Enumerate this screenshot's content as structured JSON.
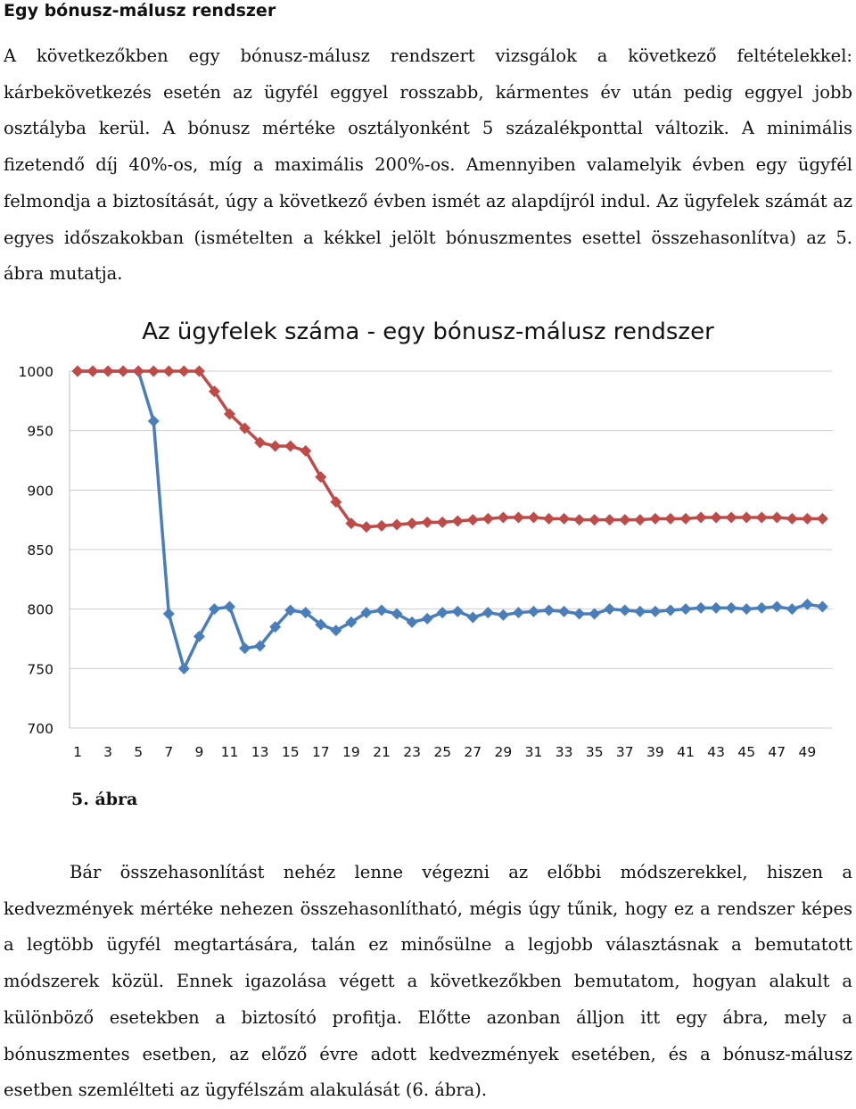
{
  "heading": "Egy bónusz-málusz rendszer",
  "paragraph_1": "A következőkben egy bónusz-málusz rendszert vizsgálok a következő feltételekkel: kárbekövetkezés esetén az ügyfél eggyel rosszabb, kármentes év után pedig eggyel jobb osztályba kerül. A bónusz mértéke osztályonként 5 százalékponttal változik. A minimális fizetendő díj 40%-os, míg a maximális 200%-os. Amennyiben valamelyik évben egy ügyfél felmondja a biztosítását, úgy a következő évben ismét az alapdíjról indul. Az ügyfelek számát az egyes időszakokban (ismételten a kékkel jelölt bónuszmentes esettel összehasonlítva) az 5. ábra mutatja.",
  "caption": "5. ábra",
  "paragraph_2": "Bár összehasonlítást nehéz lenne végezni az előbbi módszerekkel, hiszen a kedvezmények mértéke nehezen összehasonlítható, mégis úgy tűnik, hogy ez a rendszer képes a legtöbb ügyfél megtartására, talán ez minősülne a legjobb választásnak a bemutatott módszerek közül. Ennek igazolása végett a következőkben bemutatom, hogyan alakult a különböző esetekben a biztosító profitja. Előtte azonban álljon itt egy ábra, mely a bónuszmentes esetben, az előző évre adott kedvezmények esetében, és a bónusz-málusz esetben szemlélteti az ügyfélszám alakulását (6. ábra).",
  "chart_data": {
    "type": "line",
    "title": "Az ügyfelek száma - egy bónusz-málusz rendszer",
    "xlabel": "",
    "ylabel": "",
    "ylim": [
      700,
      1000
    ],
    "yticks": [
      1000,
      950,
      900,
      850,
      800,
      750,
      700
    ],
    "x": [
      1,
      2,
      3,
      4,
      5,
      6,
      7,
      8,
      9,
      10,
      11,
      12,
      13,
      14,
      15,
      16,
      17,
      18,
      19,
      20,
      21,
      22,
      23,
      24,
      25,
      26,
      27,
      28,
      29,
      30,
      31,
      32,
      33,
      34,
      35,
      36,
      37,
      38,
      39,
      40,
      41,
      42,
      43,
      44,
      45,
      46,
      47,
      48,
      49,
      50
    ],
    "xtick_labels": [
      "1",
      "3",
      "5",
      "7",
      "9",
      "11",
      "13",
      "15",
      "17",
      "19",
      "21",
      "23",
      "25",
      "27",
      "29",
      "31",
      "33",
      "35",
      "37",
      "39",
      "41",
      "43",
      "45",
      "47",
      "49"
    ],
    "grid": "horizontal",
    "legend": "none",
    "series": [
      {
        "color": "#4a7ebb",
        "marker": "diamond",
        "values": [
          1000,
          1000,
          1000,
          1000,
          1000,
          958,
          796,
          750,
          777,
          800,
          802,
          767,
          769,
          785,
          799,
          797,
          787,
          782,
          789,
          797,
          799,
          796,
          789,
          792,
          797,
          798,
          793,
          797,
          795,
          797,
          798,
          799,
          798,
          796,
          796,
          800,
          799,
          798,
          798,
          799,
          800,
          801,
          801,
          801,
          800,
          801,
          802,
          800,
          804,
          802
        ]
      },
      {
        "color": "#be4b48",
        "marker": "diamond",
        "values": [
          1000,
          1000,
          1000,
          1000,
          1000,
          1000,
          1000,
          1000,
          1000,
          983,
          964,
          952,
          940,
          937,
          937,
          933,
          911,
          890,
          872,
          869,
          870,
          871,
          872,
          873,
          873,
          874,
          875,
          876,
          877,
          877,
          877,
          876,
          876,
          875,
          875,
          875,
          875,
          875,
          876,
          876,
          876,
          877,
          877,
          877,
          877,
          877,
          877,
          876,
          876,
          876
        ]
      }
    ]
  }
}
